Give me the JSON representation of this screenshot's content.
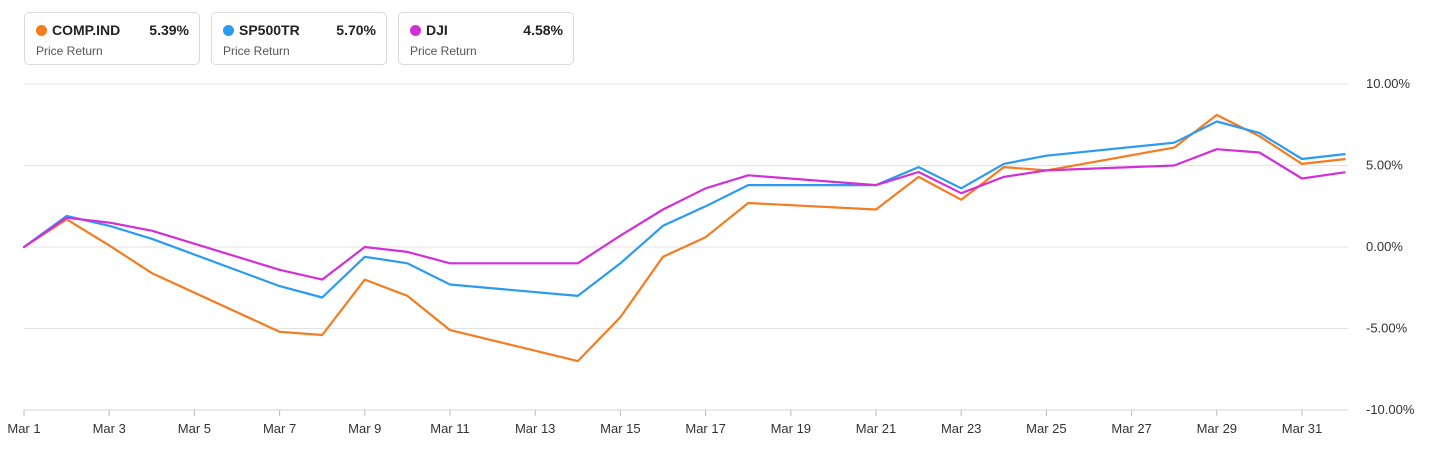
{
  "legend": [
    {
      "name": "COMP.IND",
      "value": "5.39%",
      "subtitle": "Price Return",
      "color": "#f47c20"
    },
    {
      "name": "SP500TR",
      "value": "5.70%",
      "subtitle": "Price Return",
      "color": "#2b9af3"
    },
    {
      "name": "DJI",
      "value": "4.58%",
      "subtitle": "Price Return",
      "color": "#d32fd6"
    }
  ],
  "chart_data": {
    "type": "line",
    "x": [
      "Mar 1",
      "Mar 2",
      "Mar 3",
      "Mar 4",
      "Mar 7",
      "Mar 8",
      "Mar 9",
      "Mar 10",
      "Mar 11",
      "Mar 14",
      "Mar 15",
      "Mar 16",
      "Mar 17",
      "Mar 18",
      "Mar 21",
      "Mar 22",
      "Mar 23",
      "Mar 24",
      "Mar 25",
      "Mar 28",
      "Mar 29",
      "Mar 30",
      "Mar 31",
      "Apr 1"
    ],
    "series": [
      {
        "name": "COMP.IND",
        "color": "#f47c20",
        "values": [
          0,
          1.7,
          0.1,
          -1.6,
          -5.2,
          -5.4,
          -2.0,
          -3.0,
          -5.1,
          -7.0,
          -4.3,
          -0.6,
          0.6,
          2.7,
          2.3,
          4.3,
          2.9,
          4.9,
          4.7,
          6.1,
          8.1,
          6.8,
          5.1,
          5.39
        ]
      },
      {
        "name": "SP500TR",
        "color": "#2b9af3",
        "values": [
          0,
          1.9,
          1.3,
          0.5,
          -2.4,
          -3.1,
          -0.6,
          -1.0,
          -2.3,
          -3.0,
          -1.0,
          1.3,
          2.5,
          3.8,
          3.8,
          4.9,
          3.6,
          5.1,
          5.6,
          6.4,
          7.7,
          7.0,
          5.4,
          5.7
        ]
      },
      {
        "name": "DJI",
        "color": "#d32fd6",
        "values": [
          0,
          1.8,
          1.5,
          1.0,
          -1.4,
          -2.0,
          0.0,
          -0.3,
          -1.0,
          -1.0,
          0.7,
          2.3,
          3.6,
          4.4,
          3.8,
          4.6,
          3.3,
          4.3,
          4.7,
          5.0,
          6.0,
          5.8,
          4.2,
          4.58
        ]
      }
    ],
    "x_tick_labels": [
      "Mar 1",
      "Mar 3",
      "Mar 5",
      "Mar 7",
      "Mar 9",
      "Mar 11",
      "Mar 13",
      "Mar 15",
      "Mar 17",
      "Mar 19",
      "Mar 21",
      "Mar 23",
      "Mar 25",
      "Mar 27",
      "Mar 29",
      "Mar 31"
    ],
    "y_ticks": [
      10,
      5,
      0,
      -5,
      -10
    ],
    "y_tick_labels": [
      "10.00%",
      "5.00%",
      "0.00%",
      "-5.00%",
      "-10.00%"
    ],
    "ylim": [
      -10,
      10
    ],
    "xlim": [
      "Mar 1",
      "Apr 1"
    ],
    "grid": true,
    "y_axis_side": "right",
    "title": "",
    "xlabel": "",
    "ylabel": ""
  }
}
